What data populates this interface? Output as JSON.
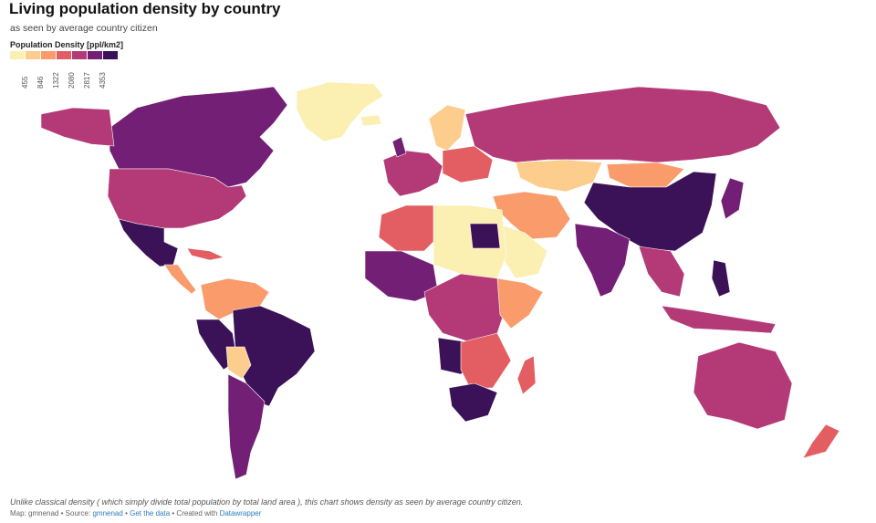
{
  "header": {
    "title": "Living population density by country",
    "subtitle": "as seen by average country citizen"
  },
  "legend": {
    "title": "Population Density [ppl/km2]",
    "swatches": [
      "#fcefb2",
      "#fdcd8d",
      "#f99b6b",
      "#e35e62",
      "#b33a76",
      "#731f76",
      "#3b1157"
    ],
    "ticks": [
      "455",
      "846",
      "1322",
      "2080",
      "2817",
      "4353"
    ]
  },
  "map_data": {
    "classes": [
      "#fcefb2",
      "#fdcd8d",
      "#f99b6b",
      "#e35e62",
      "#b33a76",
      "#731f76",
      "#3b1157"
    ]
  },
  "note": "Unlike classical density ( which simply divide total population by total land area ), this chart shows density as seen by average country citizen.",
  "footer": {
    "map_by": "Map: gmnenad",
    "source_label": "Source:",
    "source_link": "gmnenad",
    "get_data": "Get the data",
    "created_with": "Created with",
    "datawrapper": "Datawrapper",
    "sep": "•"
  }
}
